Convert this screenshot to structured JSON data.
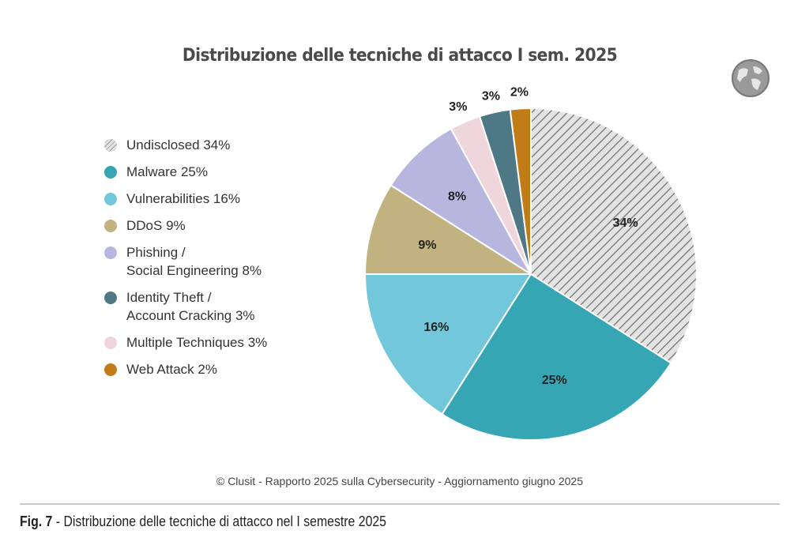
{
  "chart_data": {
    "type": "pie",
    "title": "Distribuzione delle tecniche di attacco I sem. 2025",
    "start": "top",
    "direction": "clockwise",
    "slices": [
      {
        "label": "Undisclosed 34%",
        "value": 34,
        "data_label": "34%",
        "color": "#d9d9d9",
        "pattern": "hatched"
      },
      {
        "label": "Malware 25%",
        "value": 25,
        "data_label": "25%",
        "color": "#36a6b5"
      },
      {
        "label": "Vulnerabilities 16%",
        "value": 16,
        "data_label": "16%",
        "color": "#72c8da"
      },
      {
        "label": "DDoS 9%",
        "value": 9,
        "data_label": "9%",
        "color": "#c2b27f"
      },
      {
        "label": "Phishing /\nSocial Engineering 8%",
        "value": 8,
        "data_label": "8%",
        "color": "#b7b6de"
      },
      {
        "label": "Multiple Techniques 3%",
        "value": 3,
        "data_label": "3%",
        "color": "#efd5dc"
      },
      {
        "label": "Identity Theft /\nAccount Cracking 3%",
        "value": 3,
        "data_label": "3%",
        "color": "#4f7886"
      },
      {
        "label": "Web Attack 2%",
        "value": 2,
        "data_label": "2%",
        "color": "#c07c17"
      }
    ],
    "legend_order": [
      0,
      1,
      2,
      3,
      4,
      6,
      5,
      7
    ],
    "legend_position": "left"
  },
  "credit": "© Clusit - Rapporto 2025 sulla Cybersecurity - Aggiornamento giugno 2025",
  "caption": {
    "fig": "Fig. 7",
    "text": " - Distribuzione delle tecniche di attacco nel I semestre 2025"
  },
  "icons": {
    "logo": "globe-icon"
  }
}
